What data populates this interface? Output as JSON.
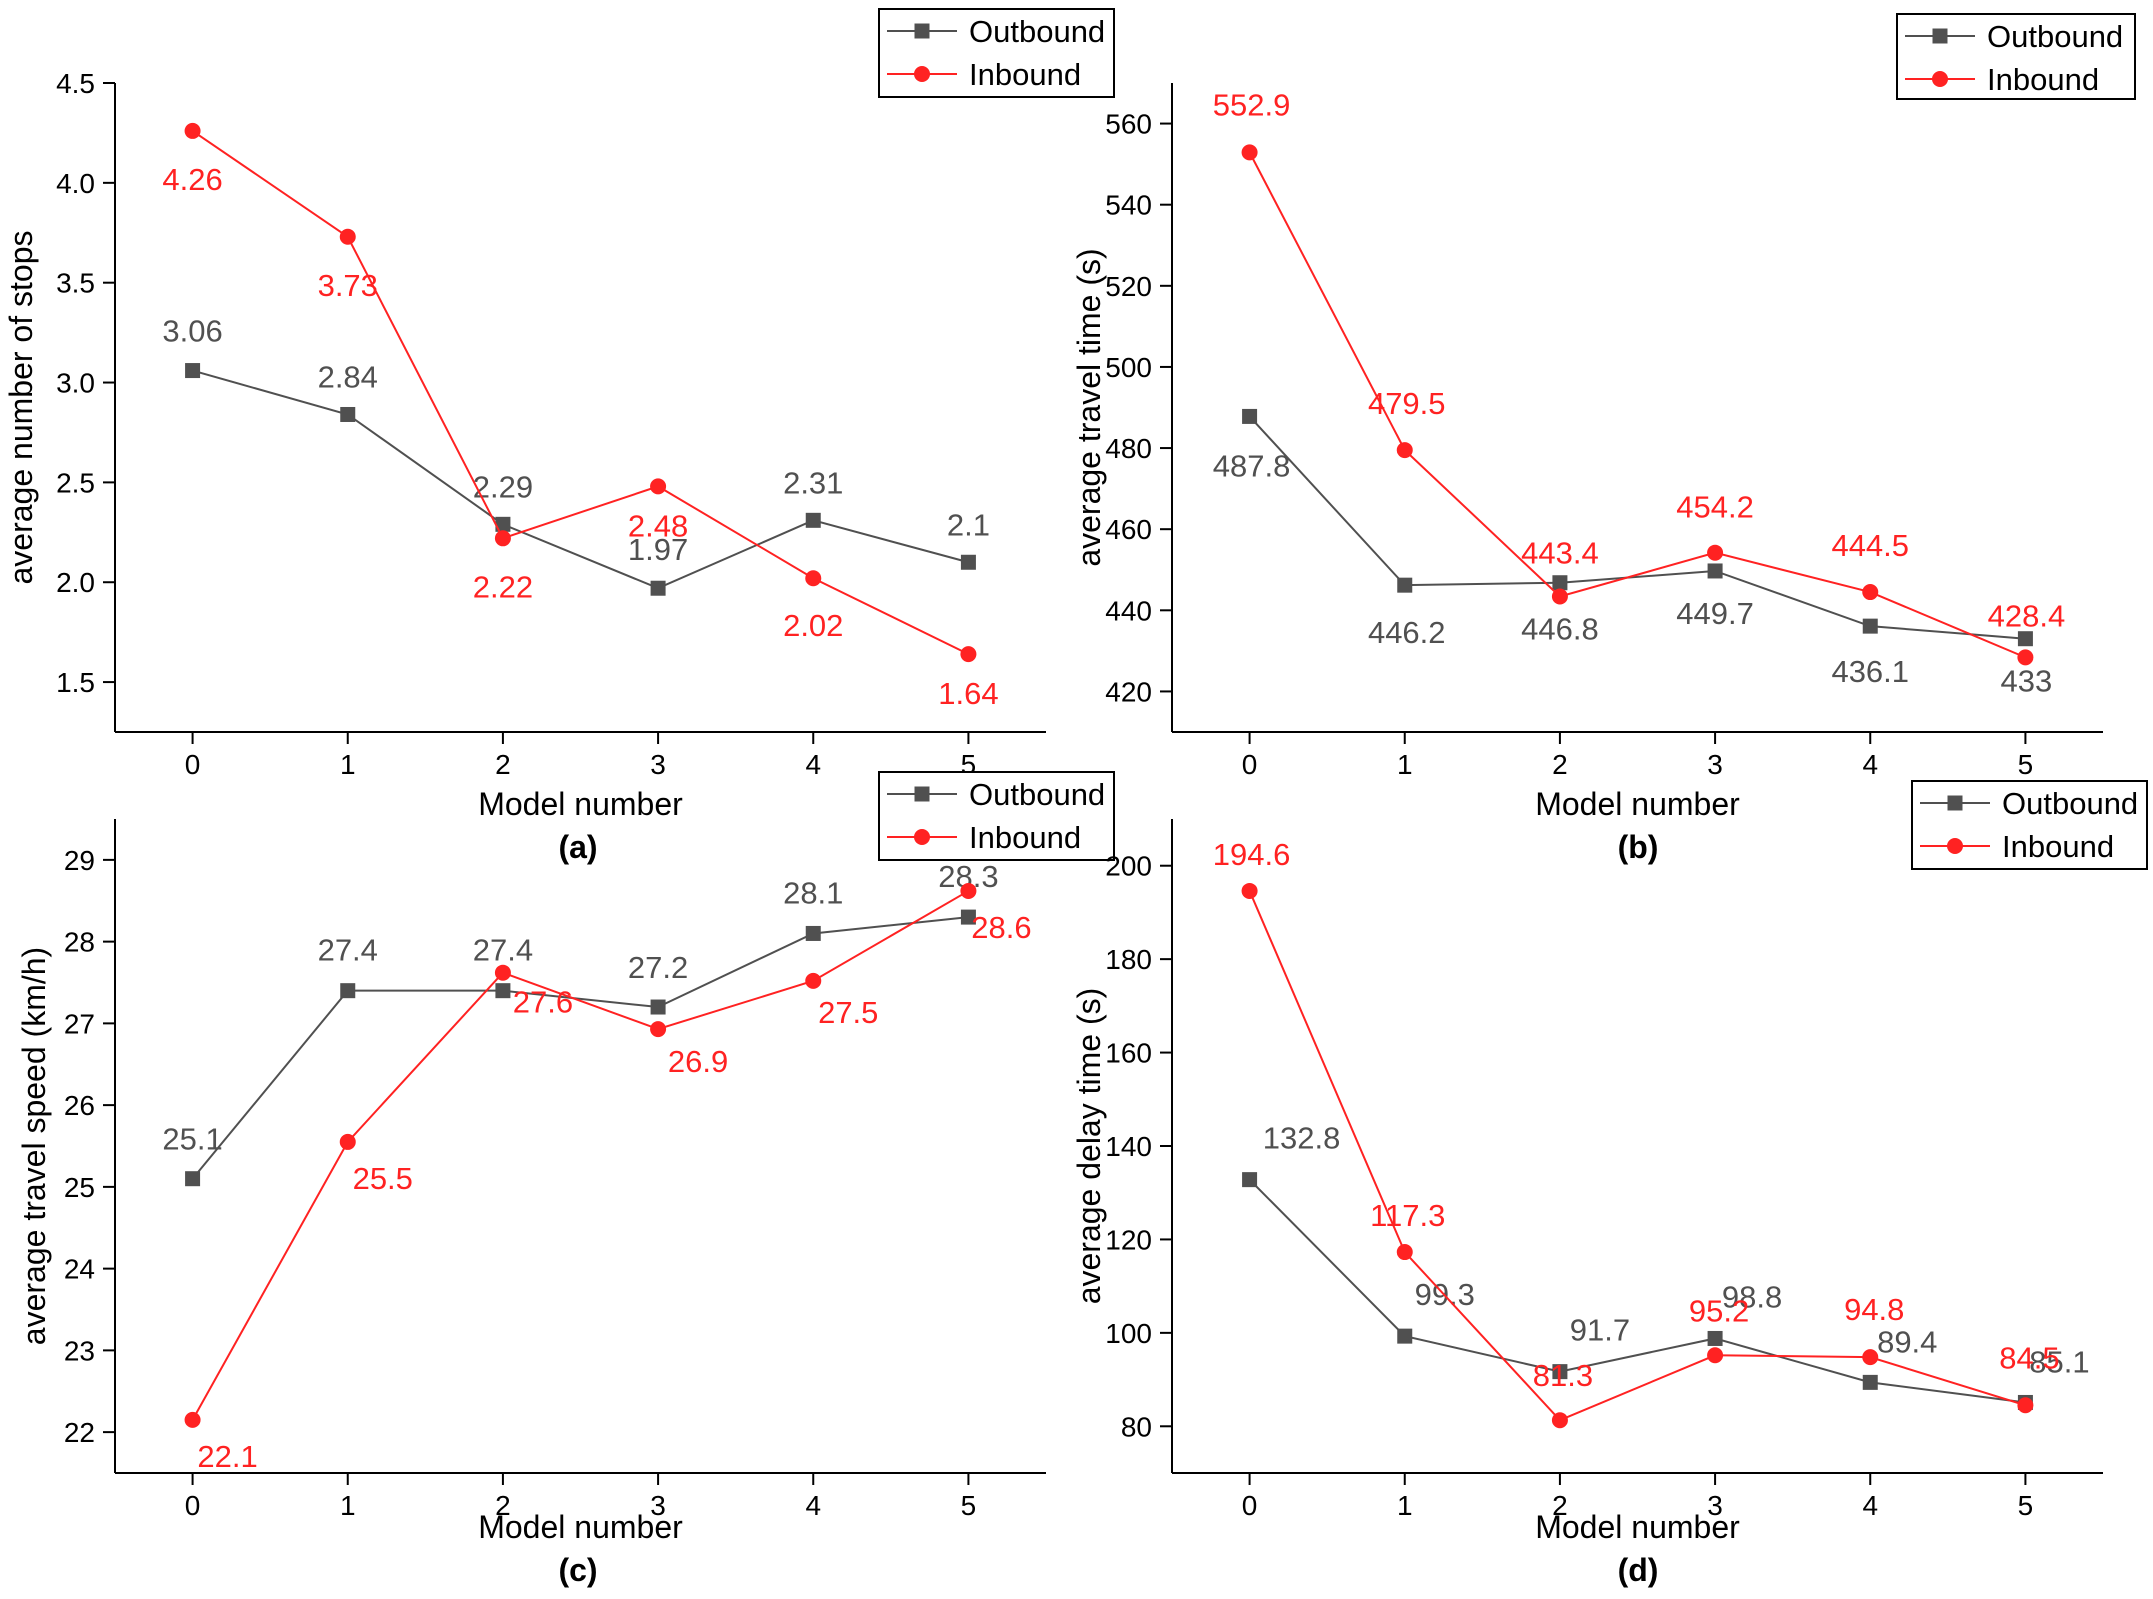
{
  "colors": {
    "outbound": "#505050",
    "inbound": "#ff2222",
    "axis": "#000000",
    "text": "#000000"
  },
  "chart_data": [
    {
      "type": "line",
      "caption": "(a)",
      "xlabel": "Model number",
      "ylabel": "average number of stops",
      "x": [
        0,
        1,
        2,
        3,
        4,
        5
      ],
      "xlim": [
        -0.5,
        5.5
      ],
      "ylim": [
        1.25,
        4.5
      ],
      "yticks": [
        1.5,
        2.0,
        2.5,
        3.0,
        3.5,
        4.0,
        4.5
      ],
      "ytick_labels": [
        "1.5",
        "2.0",
        "2.5",
        "3.0",
        "3.5",
        "4.0",
        "4.5"
      ],
      "grid": false,
      "legend": "top-right",
      "series": [
        {
          "name": "Outbound",
          "marker": "square",
          "values": [
            3.06,
            2.84,
            2.29,
            1.97,
            2.31,
            2.1
          ],
          "labels": [
            "3.06",
            "2.84",
            "2.29",
            "1.97",
            "2.31",
            "2.1"
          ]
        },
        {
          "name": "Inbound",
          "marker": "circle",
          "values": [
            4.26,
            3.73,
            2.22,
            2.48,
            2.02,
            1.64
          ],
          "labels": [
            "4.26",
            "3.73",
            "2.22",
            "2.48",
            "2.02",
            "1.64"
          ]
        }
      ]
    },
    {
      "type": "line",
      "caption": "(b)",
      "xlabel": "Model number",
      "ylabel": "average travel time (s)",
      "x": [
        0,
        1,
        2,
        3,
        4,
        5
      ],
      "xlim": [
        -0.5,
        5.5
      ],
      "ylim": [
        410,
        570
      ],
      "yticks": [
        420,
        440,
        460,
        480,
        500,
        520,
        540,
        560
      ],
      "ytick_labels": [
        "420",
        "440",
        "460",
        "480",
        "500",
        "520",
        "540",
        "560"
      ],
      "grid": false,
      "legend": "top-right",
      "series": [
        {
          "name": "Outbound",
          "marker": "square",
          "values": [
            487.8,
            446.2,
            446.8,
            449.7,
            436.1,
            433
          ],
          "labels": [
            "487.8",
            "446.2",
            "446.8",
            "449.7",
            "436.1",
            "433"
          ]
        },
        {
          "name": "Inbound",
          "marker": "circle",
          "values": [
            552.9,
            479.5,
            443.4,
            454.2,
            444.5,
            428.4
          ],
          "labels": [
            "552.9",
            "479.5",
            "443.4",
            "454.2",
            "444.5",
            "428.4"
          ]
        }
      ]
    },
    {
      "type": "line",
      "caption": "(c)",
      "xlabel": "Model number",
      "ylabel": "average travel speed (km/h)",
      "x": [
        0,
        1,
        2,
        3,
        4,
        5
      ],
      "xlim": [
        -0.5,
        5.5
      ],
      "ylim": [
        21.5,
        29.5
      ],
      "yticks": [
        22,
        23,
        24,
        25,
        26,
        27,
        28,
        29
      ],
      "ytick_labels": [
        "22",
        "23",
        "24",
        "25",
        "26",
        "27",
        "28",
        "29"
      ],
      "grid": false,
      "legend": "top-right",
      "series": [
        {
          "name": "Outbound",
          "marker": "square",
          "values": [
            25.1,
            27.4,
            27.4,
            27.2,
            28.1,
            28.3
          ],
          "labels": [
            "25.1",
            "27.4",
            "27.4",
            "27.2",
            "28.1",
            "28.3"
          ]
        },
        {
          "name": "Inbound",
          "marker": "circle",
          "values": [
            22.15,
            25.55,
            27.62,
            26.93,
            27.52,
            28.62
          ],
          "labels": [
            "22.1",
            "25.5",
            "27.6",
            "26.9",
            "27.5",
            "28.6"
          ]
        }
      ]
    },
    {
      "type": "line",
      "caption": "(d)",
      "xlabel": "Model number",
      "ylabel": "average delay time (s)",
      "x": [
        0,
        1,
        2,
        3,
        4,
        5
      ],
      "xlim": [
        -0.5,
        5.5
      ],
      "ylim": [
        70,
        210
      ],
      "yticks": [
        80,
        100,
        120,
        140,
        160,
        180,
        200
      ],
      "ytick_labels": [
        "80",
        "100",
        "120",
        "140",
        "160",
        "180",
        "200"
      ],
      "grid": false,
      "legend": "top-right",
      "series": [
        {
          "name": "Outbound",
          "marker": "square",
          "values": [
            132.8,
            99.3,
            91.7,
            98.8,
            89.4,
            85.1
          ],
          "labels": [
            "132.8",
            "99.3",
            "91.7",
            "98.8",
            "89.4",
            "85.1"
          ]
        },
        {
          "name": "Inbound",
          "marker": "circle",
          "values": [
            194.6,
            117.3,
            81.3,
            95.2,
            94.8,
            84.5
          ],
          "labels": [
            "194.6",
            "117.3",
            "81.3",
            "95.2",
            "94.8",
            "84.5"
          ]
        }
      ]
    }
  ]
}
